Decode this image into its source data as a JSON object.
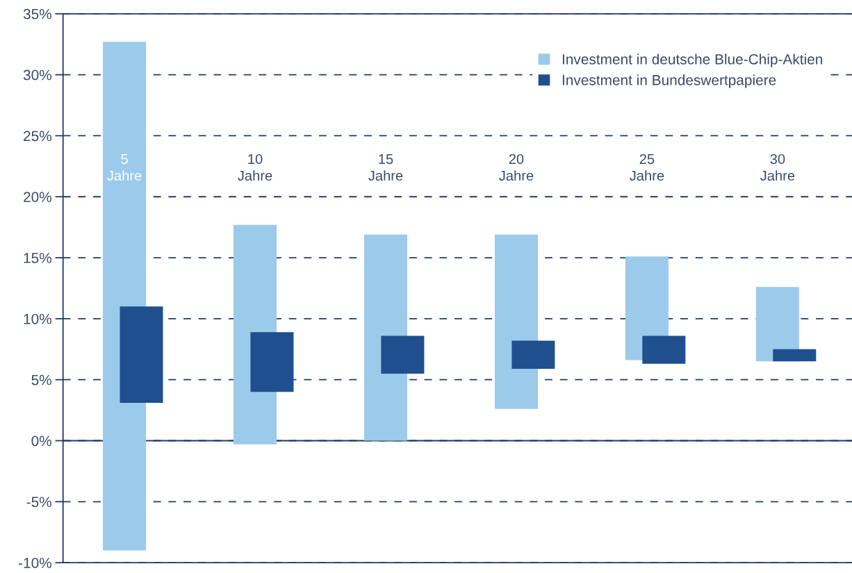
{
  "chart_data": {
    "type": "bar",
    "categories": [
      "5\nJahre",
      "10\nJahre",
      "15\nJahre",
      "20\nJahre",
      "25\nJahre",
      "30\nJahre"
    ],
    "series": [
      {
        "name": "Investment in deutsche Blue-Chip-Aktien",
        "color": "#9ccaea",
        "base": [
          -9.0,
          -0.3,
          0,
          2.6,
          6.6,
          6.5
        ],
        "values": [
          41.7,
          18.0,
          16.9,
          14.3,
          8.5,
          6.1
        ]
      },
      {
        "name": "Investment in Bundeswertpapiere",
        "color": "#1f4f8f",
        "base": [
          3.1,
          4.0,
          5.5,
          5.9,
          6.3,
          6.5
        ],
        "values": [
          7.9,
          4.9,
          3.1,
          2.3,
          2.3,
          1.0
        ]
      }
    ],
    "ylim": [
      -10,
      35
    ],
    "yticks": [
      {
        "value": -10,
        "label": "-10%"
      },
      {
        "value": -5,
        "label": "-5%"
      },
      {
        "value": 0,
        "label": "0%"
      },
      {
        "value": 5,
        "label": "5%"
      },
      {
        "value": 10,
        "label": "10%"
      },
      {
        "value": 15,
        "label": "15%"
      },
      {
        "value": 20,
        "label": "20%"
      },
      {
        "value": 25,
        "label": "25%"
      },
      {
        "value": 30,
        "label": "30%"
      },
      {
        "value": 35,
        "label": "35%"
      }
    ],
    "ref_lines": [
      {
        "axis": "y",
        "value": 0,
        "color": "#1f3b66",
        "line_style": "solid"
      }
    ],
    "grid": "y",
    "line_style": "dashed",
    "legend": "top right"
  }
}
